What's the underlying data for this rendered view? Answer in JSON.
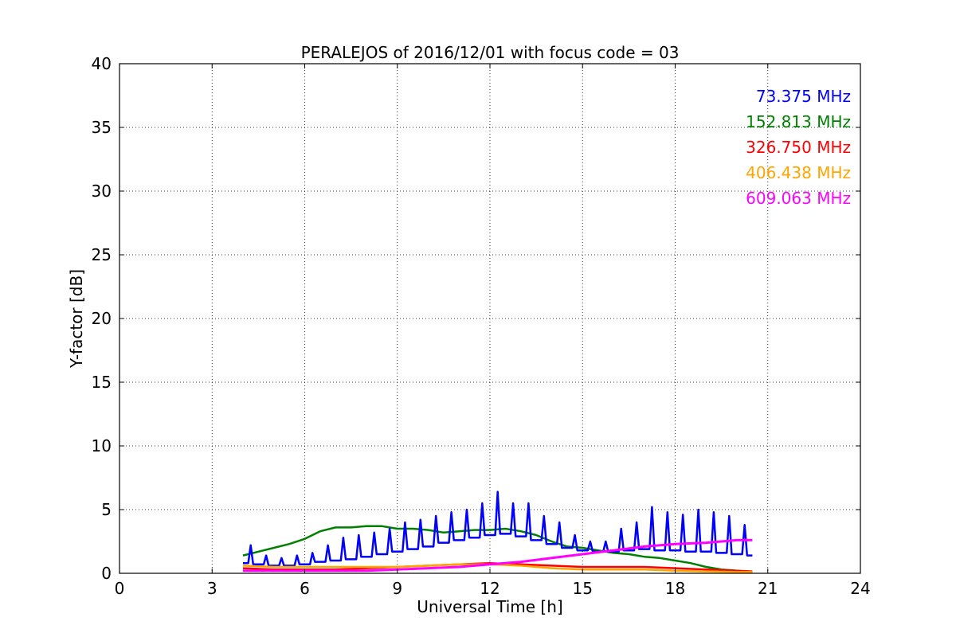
{
  "chart_data": {
    "type": "line",
    "title": "PERALEJOS of 2016/12/01 with focus code = 03",
    "xlabel": "Universal Time [h]",
    "ylabel": "Y-factor [dB]",
    "xlim": [
      0,
      24
    ],
    "ylim": [
      0,
      40
    ],
    "xticks": [
      0,
      3,
      6,
      9,
      12,
      15,
      18,
      21,
      24
    ],
    "xtick_labels": [
      "0",
      "3",
      "6",
      "9",
      "12",
      "15",
      "18",
      "21",
      "24"
    ],
    "yticks": [
      0,
      5,
      10,
      15,
      20,
      25,
      30,
      35,
      40
    ],
    "ytick_labels": [
      "0",
      "5",
      "10",
      "15",
      "20",
      "25",
      "30",
      "35",
      "40"
    ],
    "grid": true,
    "legend_position": "top-right",
    "series": [
      {
        "name": "73.375 MHz",
        "color": "#0000ff",
        "x": [
          4.0,
          4.5,
          5.0,
          5.5,
          6.0,
          6.5,
          7.0,
          7.5,
          8.0,
          8.5,
          9.0,
          9.5,
          10.0,
          10.5,
          11.0,
          11.5,
          12.0,
          12.5,
          13.0,
          13.5,
          14.0,
          14.5,
          15.0,
          15.5,
          16.0,
          16.5,
          17.0,
          17.5,
          18.0,
          18.5,
          19.0,
          19.5,
          20.0,
          20.5
        ],
        "y": [
          0.8,
          0.7,
          0.6,
          0.6,
          0.7,
          0.9,
          1.0,
          1.1,
          1.3,
          1.5,
          1.7,
          1.9,
          2.1,
          2.4,
          2.6,
          2.8,
          3.0,
          3.1,
          2.9,
          2.6,
          2.3,
          2.0,
          1.8,
          1.7,
          1.7,
          1.8,
          1.9,
          1.8,
          1.8,
          1.7,
          1.7,
          1.6,
          1.5,
          1.4
        ],
        "y_spikes": [
          2.2,
          1.4,
          1.2,
          1.4,
          1.6,
          2.2,
          2.8,
          3.0,
          3.2,
          3.5,
          4.0,
          4.2,
          4.5,
          4.8,
          5.0,
          5.5,
          6.4,
          5.5,
          5.5,
          4.5,
          4.0,
          3.0,
          2.5,
          2.5,
          3.5,
          4.0,
          5.2,
          4.8,
          4.6,
          5.0,
          4.8,
          4.5,
          3.8,
          2.5
        ]
      },
      {
        "name": "152.813 MHz",
        "color": "#008000",
        "x": [
          4.0,
          4.5,
          5.0,
          5.5,
          6.0,
          6.5,
          7.0,
          7.5,
          8.0,
          8.5,
          9.0,
          9.5,
          10.0,
          10.5,
          11.0,
          11.5,
          12.0,
          12.5,
          13.0,
          13.5,
          14.0,
          14.5,
          15.0,
          15.5,
          16.0,
          16.5,
          17.0,
          17.5,
          18.0,
          18.5,
          19.0,
          19.5,
          20.0,
          20.5
        ],
        "y": [
          1.4,
          1.7,
          2.0,
          2.3,
          2.7,
          3.3,
          3.6,
          3.6,
          3.7,
          3.7,
          3.5,
          3.5,
          3.4,
          3.2,
          3.3,
          3.4,
          3.4,
          3.5,
          3.3,
          3.0,
          2.5,
          2.1,
          2.0,
          1.8,
          1.6,
          1.5,
          1.3,
          1.2,
          1.0,
          0.8,
          0.5,
          0.3,
          0.2,
          0.1
        ]
      },
      {
        "name": "326.750 MHz",
        "color": "#ff0000",
        "x": [
          4.0,
          5.0,
          6.0,
          7.0,
          8.0,
          9.0,
          10.0,
          11.0,
          12.0,
          13.0,
          14.0,
          15.0,
          16.0,
          17.0,
          18.0,
          19.0,
          20.0,
          20.5
        ],
        "y": [
          0.4,
          0.3,
          0.3,
          0.3,
          0.4,
          0.5,
          0.6,
          0.7,
          0.8,
          0.7,
          0.6,
          0.5,
          0.5,
          0.5,
          0.4,
          0.3,
          0.2,
          0.15
        ]
      },
      {
        "name": "406.438 MHz",
        "color": "#ffa500",
        "x": [
          4.0,
          5.0,
          6.0,
          7.0,
          8.0,
          9.0,
          10.0,
          11.0,
          12.0,
          13.0,
          14.0,
          15.0,
          16.0,
          17.0,
          18.0,
          19.0,
          20.0,
          20.5
        ],
        "y": [
          0.6,
          0.5,
          0.5,
          0.5,
          0.5,
          0.5,
          0.6,
          0.7,
          0.7,
          0.6,
          0.4,
          0.3,
          0.3,
          0.3,
          0.2,
          0.15,
          0.1,
          0.1
        ]
      },
      {
        "name": "609.063 MHz",
        "color": "#ff00ff",
        "x": [
          4.0,
          5.0,
          6.0,
          7.0,
          8.0,
          9.0,
          10.0,
          11.0,
          12.0,
          13.0,
          14.0,
          15.0,
          16.0,
          17.0,
          18.0,
          19.0,
          20.0,
          20.5
        ],
        "y": [
          0.2,
          0.2,
          0.2,
          0.2,
          0.2,
          0.3,
          0.4,
          0.5,
          0.7,
          0.9,
          1.2,
          1.5,
          1.8,
          2.1,
          2.3,
          2.4,
          2.6,
          2.6
        ]
      }
    ]
  }
}
